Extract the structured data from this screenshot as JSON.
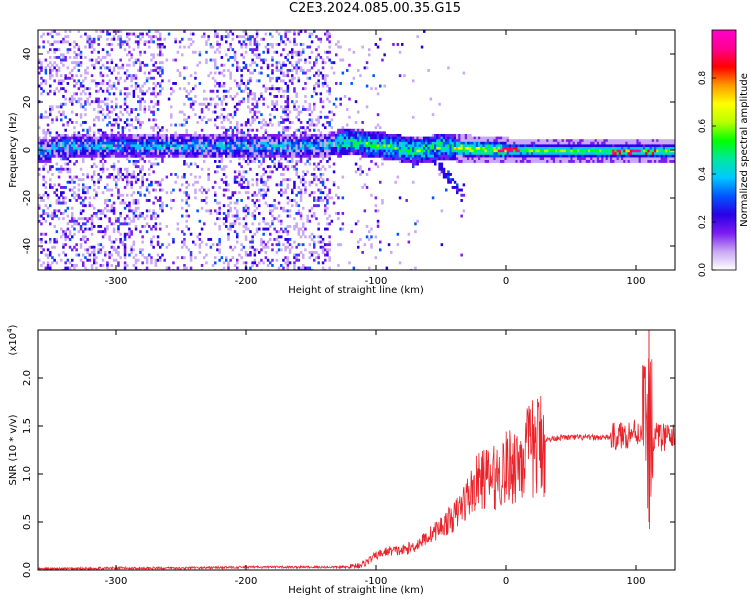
{
  "figure_title": "C2E3.2024.085.00.35.G15",
  "colors": {
    "axis": "#000000",
    "snr_line": "#e8232a",
    "background": "#ffffff"
  },
  "chart_data": [
    {
      "type": "heatmap",
      "title": "",
      "xlabel": "Height of straight line (km)",
      "ylabel": "Frequency (Hz)",
      "xlim": [
        -360,
        130
      ],
      "ylim": [
        -50,
        50
      ],
      "xticks": [
        -300,
        -200,
        -100,
        0,
        100
      ],
      "yticks": [
        -40,
        -20,
        0,
        20,
        40
      ],
      "colorbar": {
        "label": "Normalized spectral amplitude",
        "ticks": [
          "0.0",
          "0.2",
          "0.4",
          "0.6",
          "0.8"
        ],
        "range": [
          0,
          1
        ],
        "colormap": [
          "#ffffff",
          "#c9a8f5",
          "#7a1cf0",
          "#2a00e6",
          "#0055ff",
          "#00c8ff",
          "#00e8a0",
          "#00ff00",
          "#b8ff00",
          "#ffff00",
          "#ff9a00",
          "#ff0000",
          "#ff0090",
          "#ff00cc"
        ]
      },
      "center_frequency_trend": [
        {
          "x": -350,
          "y": 2
        },
        {
          "x": -250,
          "y": 2
        },
        {
          "x": -150,
          "y": 2
        },
        {
          "x": -120,
          "y": 4
        },
        {
          "x": -90,
          "y": 2
        },
        {
          "x": -70,
          "y": 0
        },
        {
          "x": -50,
          "y": 2
        },
        {
          "x": -30,
          "y": 1
        },
        {
          "x": 0,
          "y": 0.5
        },
        {
          "x": 50,
          "y": 0
        },
        {
          "x": 100,
          "y": 0
        },
        {
          "x": 130,
          "y": 0
        }
      ]
    },
    {
      "type": "line",
      "title": "",
      "xlabel": "Height of straight line (km)",
      "ylabel": "SNR (10 * v/v)",
      "scale_label": "(x10",
      "scale_exp": "4",
      "xlim": [
        -360,
        130
      ],
      "ylim": [
        0,
        2.5
      ],
      "xticks": [
        -300,
        -200,
        -100,
        0,
        100
      ],
      "yticks": [
        "0.0",
        "0.5",
        "1.0",
        "1.5",
        "2.0"
      ],
      "series": [
        {
          "name": "",
          "x": [
            -360,
            -300,
            -250,
            -200,
            -150,
            -120,
            -110,
            -100,
            -90,
            -80,
            -70,
            -60,
            -50,
            -40,
            -30,
            -20,
            -10,
            0,
            10,
            20,
            30,
            40,
            50,
            60,
            70,
            80,
            90,
            95,
            100,
            105,
            110,
            115,
            120,
            130
          ],
          "y": [
            0.01,
            0.02,
            0.02,
            0.03,
            0.03,
            0.03,
            0.06,
            0.15,
            0.2,
            0.2,
            0.25,
            0.35,
            0.45,
            0.55,
            0.75,
            0.95,
            0.95,
            1.05,
            1.15,
            1.25,
            1.35,
            1.38,
            1.38,
            1.38,
            1.38,
            1.38,
            1.4,
            1.42,
            1.45,
            1.4,
            1.3,
            1.4,
            1.38,
            1.38
          ]
        }
      ],
      "peak_points": [
        {
          "x": 110,
          "y": 2.5
        },
        {
          "x": 110,
          "y": 0.5
        },
        {
          "x": -15,
          "y": 1.25
        },
        {
          "x": 5,
          "y": 1.2
        }
      ]
    }
  ]
}
